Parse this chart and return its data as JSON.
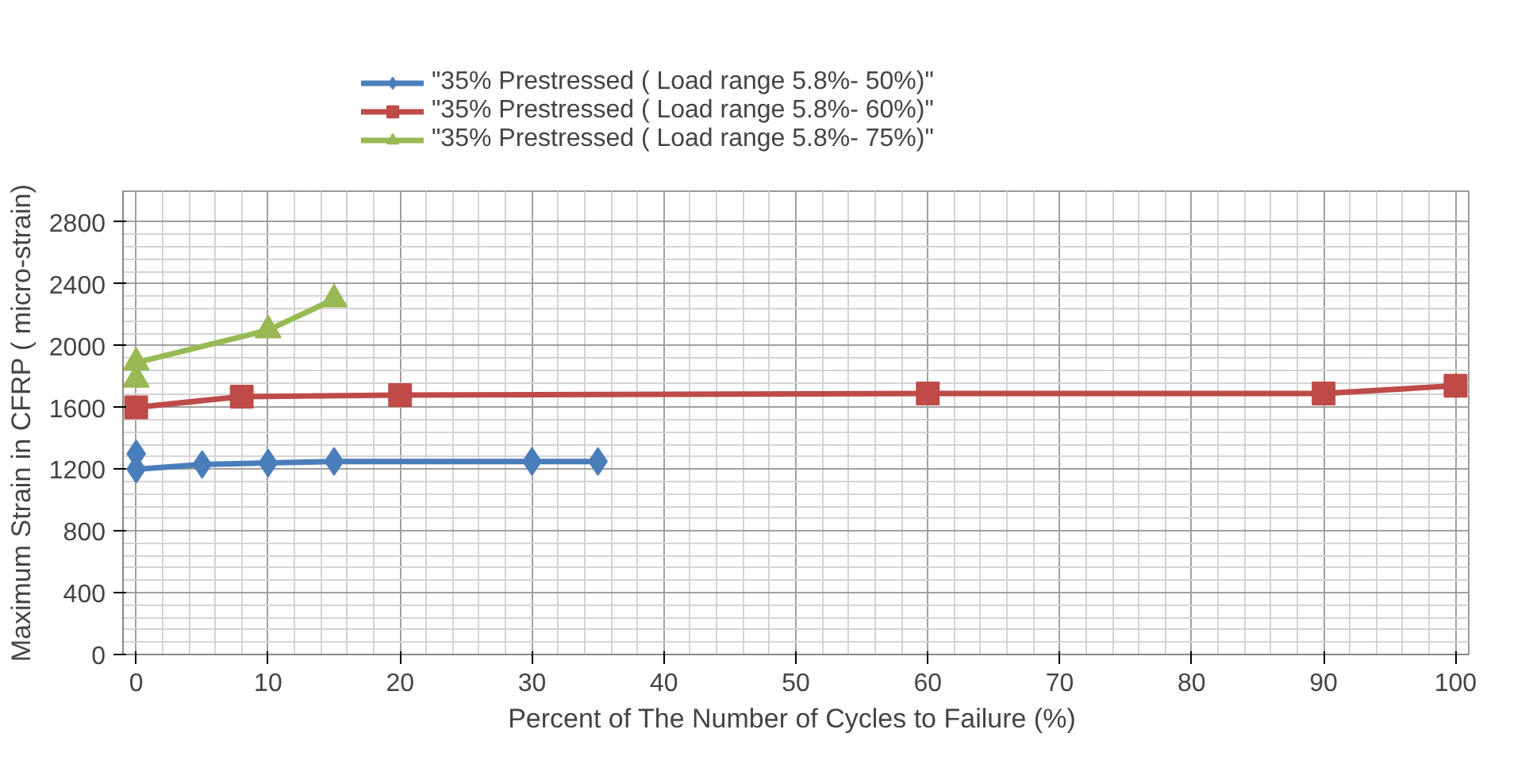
{
  "chart_data": {
    "type": "line",
    "xlabel": "Percent of The Number of Cycles  to Failure (%)",
    "ylabel": "Maximum Strain in CFRP ( micro-strain)",
    "xlim": [
      -1,
      101
    ],
    "xticks": [
      0,
      10,
      20,
      30,
      40,
      50,
      60,
      70,
      80,
      90,
      100
    ],
    "ylim": [
      0,
      3000
    ],
    "yticks": [
      0,
      400,
      800,
      1200,
      1600,
      2000,
      2400,
      2800
    ],
    "grid": true,
    "legend": "top",
    "line_style": "solid",
    "series": [
      {
        "name": "\"35% Prestressed ( Load range 5.8%- 50%)\"",
        "color": "#4a7ebb",
        "marker": "diamond",
        "x": [
          0,
          0,
          5,
          10,
          15,
          30,
          35
        ],
        "values": [
          1300,
          1200,
          1230,
          1240,
          1250,
          1250,
          1250
        ]
      },
      {
        "name": "\"35% Prestressed ( Load range 5.8%- 60%)\"",
        "color": "#be4b48",
        "marker": "square",
        "x": [
          0,
          8,
          20,
          60,
          90,
          100
        ],
        "values": [
          1600,
          1670,
          1680,
          1690,
          1690,
          1740
        ]
      },
      {
        "name": "\"35% Prestressed ( Load range 5.8%- 75%)\"",
        "color": "#98b954",
        "marker": "triangle",
        "x": [
          0,
          0,
          10,
          15
        ],
        "values": [
          1780,
          1890,
          2100,
          2300
        ]
      }
    ]
  }
}
